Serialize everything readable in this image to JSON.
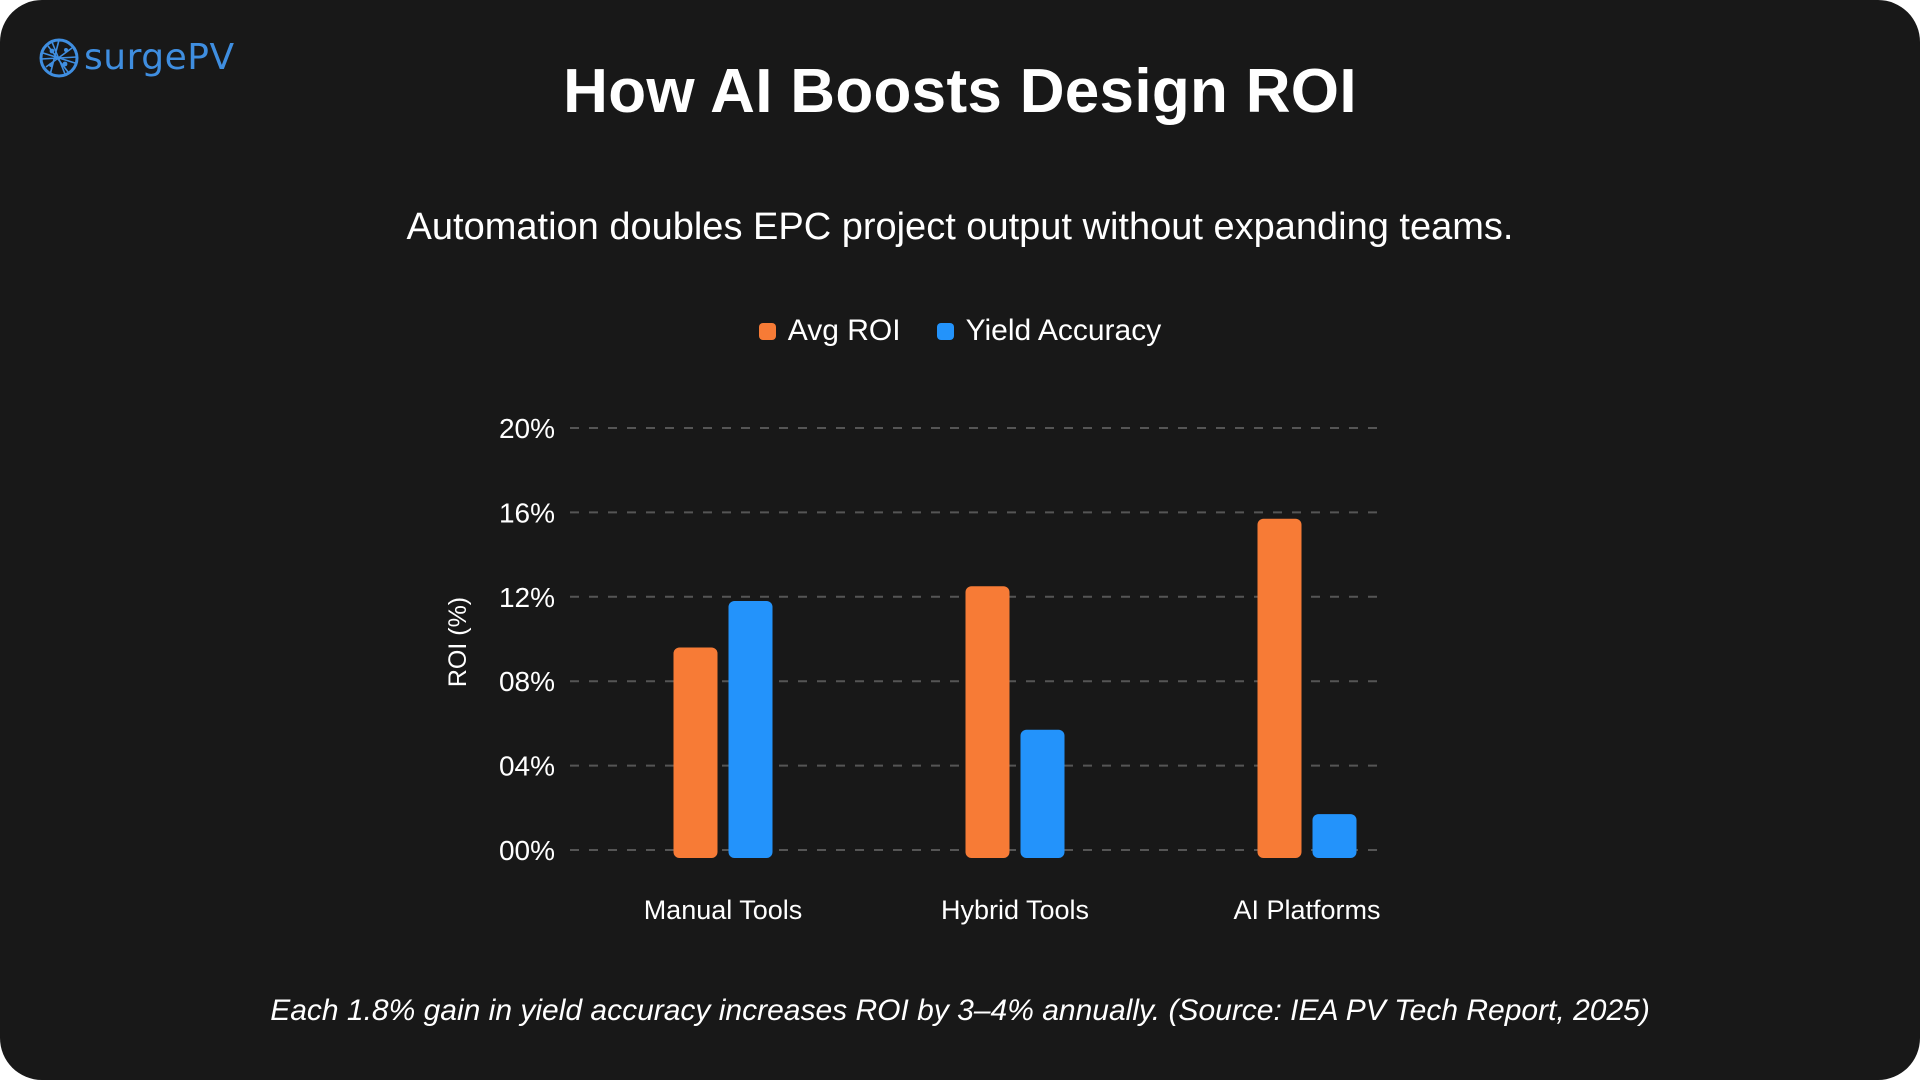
{
  "brand": {
    "name": "surgePV",
    "color": "#3f8ee0"
  },
  "header": {
    "title": "How AI Boosts Design ROI",
    "subtitle": "Automation doubles EPC project output without expanding teams."
  },
  "footnote": "Each 1.8% gain in yield accuracy increases ROI by 3–4% annually. (Source: IEA PV Tech Report, 2025)",
  "chart_data": {
    "type": "bar",
    "title": "How AI Boosts Design ROI",
    "subtitle": "Automation doubles EPC project output without expanding teams.",
    "categories": [
      "Manual Tools",
      "Hybrid Tools",
      "AI Platforms"
    ],
    "series": [
      {
        "name": "Avg ROI",
        "values": [
          9.6,
          12.5,
          15.7
        ],
        "color": "#f77b36"
      },
      {
        "name": "Yield Accuracy",
        "values": [
          11.8,
          5.7,
          1.7
        ],
        "color": "#2393fb"
      }
    ],
    "xlabel": "",
    "ylabel": "ROI (%)",
    "ylim": [
      0,
      20
    ],
    "yticks": [
      0,
      4,
      8,
      12,
      16,
      20
    ],
    "ytick_labels": [
      "00%",
      "04%",
      "08%",
      "12%",
      "16%",
      "20%"
    ],
    "grid": true,
    "grid_style": "dashed",
    "legend_position": "top-center"
  }
}
